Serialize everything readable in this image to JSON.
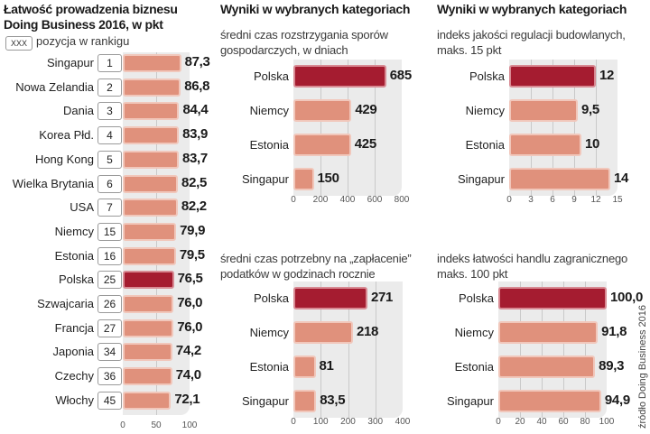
{
  "colors": {
    "highlight": "#a51c30",
    "default": "#e0917c",
    "panel": "#ebebeb"
  },
  "source": "źródło Doing Business 2016",
  "chart_data": [
    {
      "type": "bar",
      "id": "ease",
      "title": "Łatwość prowadzenia biznesu Doing Business 2016, w pkt",
      "legend": {
        "box": "XXX",
        "text": "pozycja w rankigu"
      },
      "categories": [
        "Singapur",
        "Nowa Zelandia",
        "Dania",
        "Korea Płd.",
        "Hong Kong",
        "Wielka Brytania",
        "USA",
        "Niemcy",
        "Estonia",
        "Polska",
        "Szwajcaria",
        "Francja",
        "Japonia",
        "Czechy",
        "Włochy"
      ],
      "ranks": [
        "1",
        "2",
        "3",
        "4",
        "5",
        "6",
        "7",
        "15",
        "16",
        "25",
        "26",
        "27",
        "34",
        "36",
        "45"
      ],
      "values": [
        87.3,
        86.8,
        84.4,
        83.9,
        83.7,
        82.5,
        82.2,
        79.9,
        79.5,
        76.5,
        76.0,
        76.0,
        74.2,
        74.0,
        72.1
      ],
      "labels": [
        "87,3",
        "86,8",
        "84,4",
        "83,9",
        "83,7",
        "82,5",
        "82,2",
        "79,9",
        "79,5",
        "76,5",
        "76,0",
        "76,0",
        "74,2",
        "74,0",
        "72,1"
      ],
      "highlight": "Polska",
      "xlim": [
        0,
        100
      ],
      "ticks": [
        "0",
        "50",
        "100"
      ]
    },
    {
      "type": "bar",
      "id": "disputes",
      "title": "Wyniki w wybranych kategoriach",
      "subtitle": [
        "średni czas rozstrzygania sporów",
        "gospodarczych, w dniach"
      ],
      "categories": [
        "Polska",
        "Niemcy",
        "Estonia",
        "Singapur"
      ],
      "values": [
        685,
        429,
        425,
        150
      ],
      "labels": [
        "685",
        "429",
        "425",
        "150"
      ],
      "highlight": "Polska",
      "xlim": [
        0,
        800
      ],
      "ticks": [
        "0",
        "200",
        "400",
        "600",
        "800"
      ]
    },
    {
      "type": "bar",
      "id": "taxes",
      "subtitle": [
        "średni czas potrzebny na „zapłacenie”",
        "podatków w godzinach rocznie"
      ],
      "categories": [
        "Polska",
        "Niemcy",
        "Estonia",
        "Singapur"
      ],
      "values": [
        271,
        218,
        81,
        83.5
      ],
      "labels": [
        "271",
        "218",
        "81",
        "83,5"
      ],
      "highlight": "Polska",
      "xlim": [
        0,
        400
      ],
      "ticks": [
        "0",
        "100",
        "200",
        "300",
        "400"
      ]
    },
    {
      "type": "bar",
      "id": "construction",
      "title": "Wyniki w wybranych kategoriach",
      "subtitle": [
        "indeks jakości regulacji budowlanych,",
        "maks. 15 pkt"
      ],
      "categories": [
        "Polska",
        "Niemcy",
        "Estonia",
        "Singapur"
      ],
      "values": [
        12,
        9.5,
        10,
        14
      ],
      "labels": [
        "12",
        "9,5",
        "10",
        "14"
      ],
      "highlight": "Polska",
      "xlim": [
        0,
        15
      ],
      "ticks": [
        "0",
        "3",
        "6",
        "9",
        "12",
        "15"
      ]
    },
    {
      "type": "bar",
      "id": "trade",
      "subtitle": [
        "indeks łatwości handlu zagranicznego",
        "maks. 100 pkt"
      ],
      "categories": [
        "Polska",
        "Niemcy",
        "Estonia",
        "Singapur"
      ],
      "values": [
        100.0,
        91.8,
        89.3,
        94.9
      ],
      "labels": [
        "100,0",
        "91,8",
        "89,3",
        "94,9"
      ],
      "highlight": "Polska",
      "xlim": [
        0,
        100
      ],
      "ticks": [
        "0",
        "20",
        "40",
        "60",
        "80",
        "100"
      ]
    }
  ]
}
